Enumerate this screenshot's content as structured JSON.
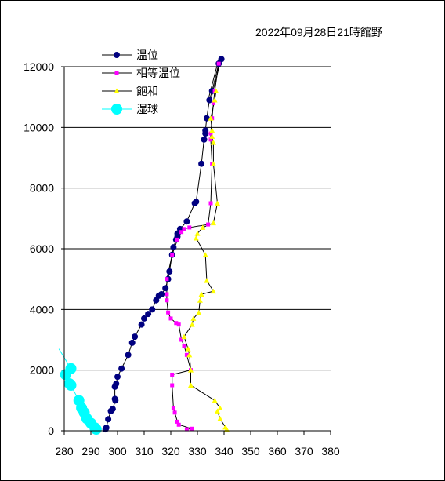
{
  "chart_data": {
    "type": "scatter",
    "title": "2022年09月28日21時館野",
    "xlabel": "",
    "ylabel": "",
    "xlim": [
      280,
      380
    ],
    "ylim": [
      0,
      12000
    ],
    "x_ticks": [
      280,
      290,
      300,
      310,
      320,
      330,
      340,
      350,
      360,
      370,
      380
    ],
    "y_ticks": [
      0,
      2000,
      4000,
      6000,
      8000,
      10000,
      12000
    ],
    "grid": "horizontal",
    "legend_position": "top-left",
    "dry_adiabats_start": [
      334,
      335
    ],
    "series": [
      {
        "name": "温位",
        "color": "#000080",
        "marker": "circle",
        "points": [
          [
            295.5,
            50
          ],
          [
            295.8,
            100
          ],
          [
            296.5,
            380
          ],
          [
            297.5,
            650
          ],
          [
            298.2,
            720
          ],
          [
            299.2,
            1000
          ],
          [
            299.0,
            1050
          ],
          [
            299.0,
            1450
          ],
          [
            299.5,
            1550
          ],
          [
            300.0,
            1780
          ],
          [
            301.5,
            2050
          ],
          [
            304.0,
            2500
          ],
          [
            305.5,
            2900
          ],
          [
            306.5,
            3100
          ],
          [
            309.0,
            3500
          ],
          [
            310.0,
            3700
          ],
          [
            311.5,
            3850
          ],
          [
            313.0,
            4000
          ],
          [
            314.5,
            4300
          ],
          [
            315.5,
            4450
          ],
          [
            316.5,
            4500
          ],
          [
            318.0,
            4700
          ],
          [
            319.0,
            5000
          ],
          [
            319.5,
            5250
          ],
          [
            320.5,
            5800
          ],
          [
            321.0,
            6050
          ],
          [
            322.0,
            6300
          ],
          [
            322.5,
            6400
          ],
          [
            322.5,
            6500
          ],
          [
            323.5,
            6650
          ],
          [
            326.0,
            6900
          ],
          [
            329.0,
            7500
          ],
          [
            329.5,
            7550
          ],
          [
            331.5,
            8800
          ],
          [
            332.5,
            9600
          ],
          [
            333.0,
            9800
          ],
          [
            333.0,
            9900
          ],
          [
            333.5,
            10300
          ],
          [
            334.5,
            10900
          ],
          [
            335.5,
            11200
          ],
          [
            338.0,
            12100
          ],
          [
            339.0,
            12250
          ]
        ]
      },
      {
        "name": "相等温位",
        "color": "#ff00ff",
        "marker": "square",
        "points": [
          [
            326.0,
            50
          ],
          [
            328.0,
            70
          ],
          [
            323.0,
            200
          ],
          [
            322.5,
            300
          ],
          [
            321.5,
            600
          ],
          [
            321.0,
            750
          ],
          [
            320.5,
            1500
          ],
          [
            320.5,
            1850
          ],
          [
            327.5,
            2000
          ],
          [
            326.0,
            2500
          ],
          [
            325.0,
            2800
          ],
          [
            324.0,
            3000
          ],
          [
            323.0,
            3500
          ],
          [
            322.0,
            3550
          ],
          [
            320.0,
            3700
          ],
          [
            319.0,
            3900
          ],
          [
            318.5,
            4300
          ],
          [
            318.5,
            4500
          ],
          [
            318.5,
            5000
          ],
          [
            320.5,
            5800
          ],
          [
            322.5,
            6300
          ],
          [
            324.0,
            6550
          ],
          [
            325.0,
            6650
          ],
          [
            327.0,
            6700
          ],
          [
            334.0,
            6800
          ],
          [
            335.0,
            7500
          ],
          [
            335.5,
            8800
          ],
          [
            335.0,
            9600
          ],
          [
            335.0,
            9800
          ],
          [
            335.5,
            10300
          ],
          [
            336.0,
            10800
          ],
          [
            336.5,
            11200
          ],
          [
            338.0,
            12100
          ]
        ]
      },
      {
        "name": "飽和",
        "color": "#ffff00",
        "marker": "triangle",
        "points": [
          [
            341.0,
            50
          ],
          [
            340.5,
            120
          ],
          [
            338.5,
            400
          ],
          [
            337.5,
            650
          ],
          [
            338.5,
            750
          ],
          [
            336.5,
            1000
          ],
          [
            327.5,
            1500
          ],
          [
            327.5,
            2000
          ],
          [
            327.0,
            2500
          ],
          [
            326.5,
            2700
          ],
          [
            325.0,
            3100
          ],
          [
            328.0,
            3500
          ],
          [
            328.5,
            3700
          ],
          [
            330.5,
            3900
          ],
          [
            331.0,
            4300
          ],
          [
            331.5,
            4500
          ],
          [
            336.0,
            4600
          ],
          [
            333.5,
            4950
          ],
          [
            333.0,
            5800
          ],
          [
            329.5,
            6350
          ],
          [
            330.0,
            6500
          ],
          [
            332.0,
            6700
          ],
          [
            336.0,
            6850
          ],
          [
            337.5,
            7500
          ],
          [
            336.0,
            8800
          ],
          [
            336.0,
            9500
          ],
          [
            335.5,
            9700
          ],
          [
            335.5,
            9900
          ],
          [
            335.0,
            10300
          ],
          [
            336.5,
            10900
          ],
          [
            337.0,
            11200
          ]
        ]
      },
      {
        "name": "湿球",
        "color": "#00ffff",
        "marker": "circle",
        "points": [
          [
            292.0,
            50
          ],
          [
            291.5,
            100
          ],
          [
            290.0,
            250
          ],
          [
            288.5,
            400
          ],
          [
            287.5,
            600
          ],
          [
            286.5,
            750
          ],
          [
            285.5,
            1000
          ],
          [
            282.5,
            1500
          ],
          [
            282.0,
            1550
          ],
          [
            280.5,
            1850
          ],
          [
            282.5,
            2050
          ],
          [
            278.0,
            2700
          ]
        ]
      }
    ]
  }
}
